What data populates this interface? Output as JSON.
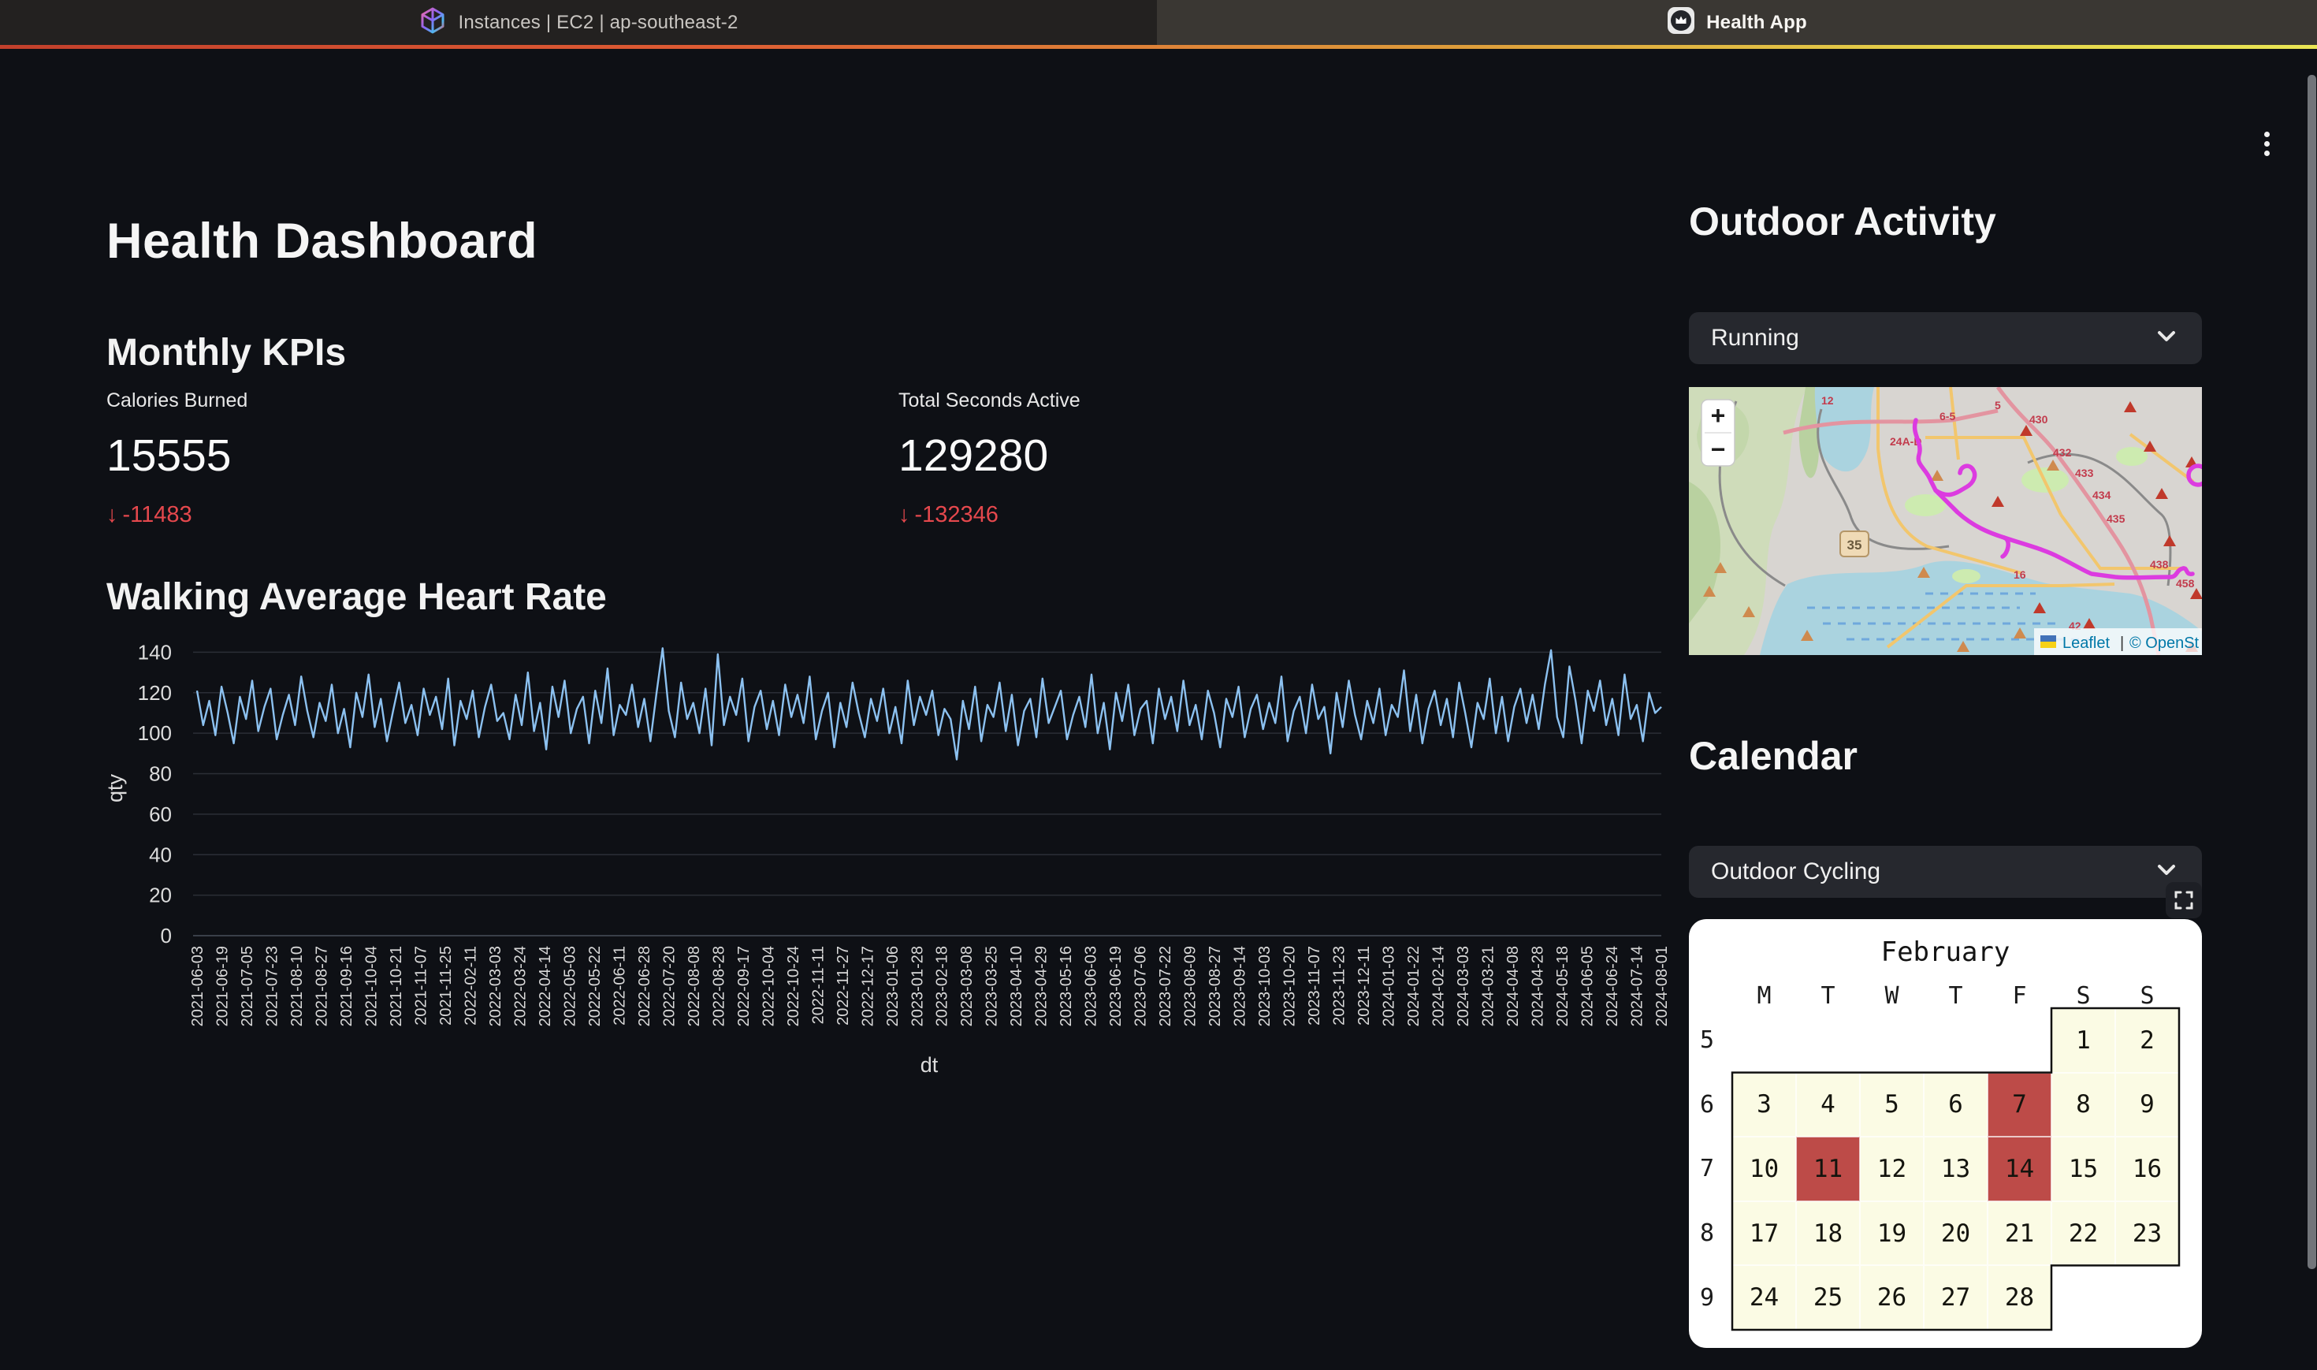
{
  "browser": {
    "tabs": [
      {
        "title": "Instances | EC2 | ap-southeast-2",
        "active": false
      },
      {
        "title": "Health App",
        "active": true
      }
    ]
  },
  "page": {
    "title": "Health Dashboard",
    "kpis_heading": "Monthly KPIs",
    "delta_arrow": "↓",
    "kpis": [
      {
        "label": "Calories Burned",
        "value": "15555",
        "delta": "-11483",
        "direction": "down"
      },
      {
        "label": "Total Seconds Active",
        "value": "129280",
        "delta": "-132346",
        "direction": "down"
      }
    ]
  },
  "chart_data": {
    "type": "line",
    "title": "Walking Average Heart Rate",
    "xlabel": "dt",
    "ylabel": "qty",
    "ylim": [
      0,
      146
    ],
    "y_ticks": [
      0,
      20,
      40,
      60,
      80,
      100,
      120,
      140
    ],
    "grid": "horizontal",
    "line_color": "#8cc1f0",
    "x_tick_labels": [
      "2021-06-03",
      "2021-06-19",
      "2021-07-05",
      "2021-07-23",
      "2021-08-10",
      "2021-08-27",
      "2021-09-16",
      "2021-10-04",
      "2021-10-21",
      "2021-11-07",
      "2021-11-25",
      "2022-02-11",
      "2022-03-03",
      "2022-03-24",
      "2022-04-14",
      "2022-05-03",
      "2022-05-22",
      "2022-06-11",
      "2022-06-28",
      "2022-07-20",
      "2022-08-08",
      "2022-08-28",
      "2022-09-17",
      "2022-10-04",
      "2022-10-24",
      "2022-11-11",
      "2022-11-27",
      "2022-12-17",
      "2023-01-06",
      "2023-01-28",
      "2023-02-18",
      "2023-03-08",
      "2023-03-25",
      "2023-04-10",
      "2023-04-29",
      "2023-05-16",
      "2023-06-03",
      "2023-06-19",
      "2023-07-06",
      "2023-07-22",
      "2023-08-09",
      "2023-08-27",
      "2023-09-14",
      "2023-10-03",
      "2023-10-20",
      "2023-11-07",
      "2023-11-23",
      "2023-12-11",
      "2024-01-03",
      "2024-01-22",
      "2024-02-14",
      "2024-03-03",
      "2024-03-21",
      "2024-04-08",
      "2024-04-28",
      "2024-05-18",
      "2024-06-05",
      "2024-06-24",
      "2024-07-14",
      "2024-08-01"
    ],
    "series": [
      {
        "name": "walking_avg_heart_rate",
        "values": [
          121,
          104,
          116,
          99,
          123,
          110,
          95,
          118,
          107,
          126,
          101,
          113,
          122,
          97,
          109,
          119,
          104,
          128,
          111,
          98,
          115,
          106,
          124,
          100,
          112,
          93,
          120,
          108,
          129,
          103,
          117,
          96,
          111,
          125,
          105,
          114,
          99,
          122,
          109,
          118,
          102,
          127,
          94,
          116,
          107,
          121,
          98,
          113,
          124,
          106,
          110,
          97,
          119,
          104,
          130,
          101,
          115,
          92,
          123,
          108,
          126,
          100,
          112,
          118,
          95,
          121,
          105,
          132,
          99,
          114,
          109,
          124,
          103,
          117,
          96,
          120,
          142,
          111,
          98,
          125,
          107,
          115,
          100,
          122,
          94,
          139,
          104,
          118,
          109,
          127,
          96,
          113,
          121,
          102,
          116,
          99,
          124,
          108,
          119,
          105,
          128,
          97,
          111,
          120,
          93,
          115,
          103,
          125,
          110,
          98,
          117,
          106,
          122,
          100,
          113,
          95,
          126,
          104,
          118,
          109,
          121,
          99,
          112,
          107,
          87,
          116,
          102,
          123,
          96,
          114,
          108,
          125,
          101,
          119,
          94,
          111,
          117,
          98,
          127,
          105,
          113,
          121,
          97,
          109,
          118,
          103,
          129,
          100,
          115,
          92,
          120,
          106,
          124,
          99,
          112,
          116,
          95,
          122,
          107,
          118,
          101,
          126,
          104,
          114,
          97,
          121,
          110,
          93,
          117,
          108,
          123,
          98,
          112,
          119,
          102,
          115,
          105,
          128,
          96,
          111,
          118,
          100,
          124,
          107,
          113,
          90,
          120,
          103,
          126,
          109,
          97,
          116,
          105,
          122,
          99,
          114,
          108,
          131,
          101,
          119,
          95,
          112,
          121,
          104,
          117,
          98,
          125,
          110,
          93,
          115,
          107,
          127,
          100,
          118,
          96,
          113,
          122,
          105,
          119,
          102,
          124,
          141,
          108,
          98,
          133,
          116,
          95,
          121,
          111,
          126,
          104,
          117,
          99,
          129,
          107,
          114,
          96,
          120,
          110,
          113
        ]
      }
    ]
  },
  "outdoor": {
    "heading": "Outdoor Activity",
    "activity_select": "Running"
  },
  "map": {
    "zoom_in": "+",
    "zoom_out": "−",
    "attribution": {
      "leaflet": "Leaflet",
      "divider": "|",
      "osm": "© OpenSt"
    },
    "shield_35": "35",
    "labels": [
      "12",
      "24A-D",
      "6-5",
      "5",
      "430",
      "432",
      "433",
      "434",
      "435",
      "438",
      "458",
      "16",
      "42"
    ],
    "route_color": "#dc3be0"
  },
  "calendar": {
    "heading": "Calendar",
    "activity_select": "Outdoor Cycling",
    "month_title": "February",
    "day_headers": [
      "M",
      "T",
      "W",
      "T",
      "F",
      "S",
      "S"
    ],
    "week_numbers": [
      "5",
      "6",
      "7",
      "8",
      "9"
    ],
    "weeks": [
      [
        "",
        "",
        "",
        "",
        "",
        "1",
        "2"
      ],
      [
        "3",
        "4",
        "5",
        "6",
        "7",
        "8",
        "9"
      ],
      [
        "10",
        "11",
        "12",
        "13",
        "14",
        "15",
        "16"
      ],
      [
        "17",
        "18",
        "19",
        "20",
        "21",
        "22",
        "23"
      ],
      [
        "24",
        "25",
        "26",
        "27",
        "28",
        "",
        ""
      ]
    ],
    "highlighted_days": [
      "7",
      "11",
      "14"
    ],
    "cell_color": "#fbfbe4",
    "highlight_color": "#bd4b48"
  }
}
